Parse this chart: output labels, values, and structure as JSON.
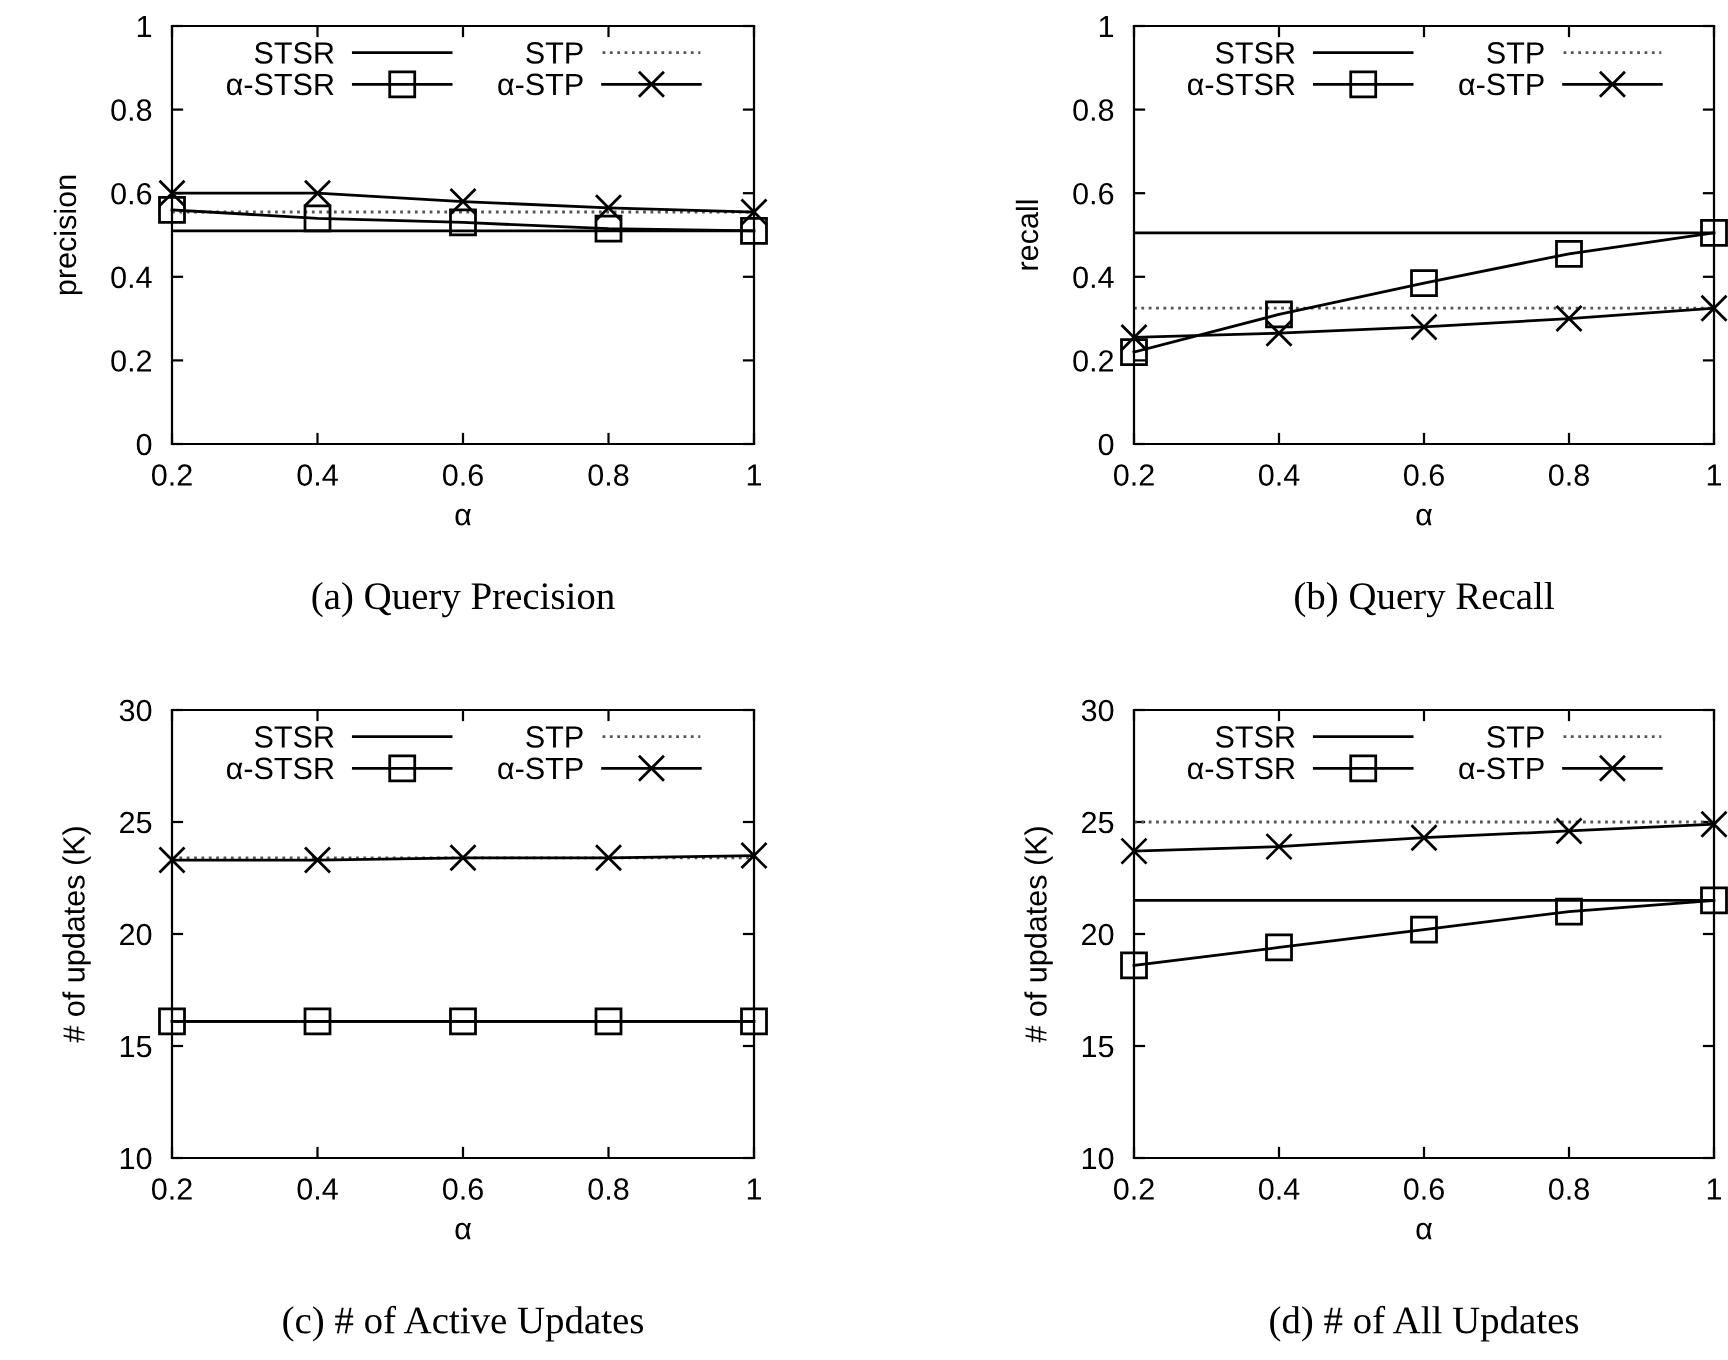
{
  "chart_data": [
    {
      "type": "line",
      "title": "(a) Query Precision",
      "xlabel": "α",
      "ylabel": "precision",
      "x": [
        0.2,
        0.4,
        0.6,
        0.8,
        1
      ],
      "xlim": [
        0.2,
        1
      ],
      "xticks": [
        0.2,
        0.4,
        0.6,
        0.8,
        1
      ],
      "ylim": [
        0,
        1
      ],
      "yticks": [
        0,
        0.2,
        0.4,
        0.6,
        0.8,
        1
      ],
      "grid": false,
      "legend": "top",
      "ref_lines": [
        {
          "axis": "y",
          "value": 0.51,
          "label": "STSR",
          "color": "#000000",
          "line_style": "solid"
        },
        {
          "axis": "y",
          "value": 0.555,
          "label": "STP",
          "color": "#555555",
          "line_style": "dotted"
        }
      ],
      "series": [
        {
          "name": "α-STSR",
          "color": "#000000",
          "line_style": "solid",
          "marker": "square",
          "values": [
            0.56,
            0.54,
            0.53,
            0.515,
            0.51
          ]
        },
        {
          "name": "α-STP",
          "color": "#000000",
          "line_style": "solid",
          "marker": "cross",
          "values": [
            0.6,
            0.6,
            0.58,
            0.565,
            0.555
          ]
        }
      ]
    },
    {
      "type": "line",
      "title": "(b) Query Recall",
      "xlabel": "α",
      "ylabel": "recall",
      "x": [
        0.2,
        0.4,
        0.6,
        0.8,
        1
      ],
      "xlim": [
        0.2,
        1
      ],
      "xticks": [
        0.2,
        0.4,
        0.6,
        0.8,
        1
      ],
      "ylim": [
        0,
        1
      ],
      "yticks": [
        0,
        0.2,
        0.4,
        0.6,
        0.8,
        1
      ],
      "grid": false,
      "legend": "top",
      "ref_lines": [
        {
          "axis": "y",
          "value": 0.505,
          "label": "STSR",
          "color": "#000000",
          "line_style": "solid"
        },
        {
          "axis": "y",
          "value": 0.325,
          "label": "STP",
          "color": "#555555",
          "line_style": "dotted"
        }
      ],
      "series": [
        {
          "name": "α-STSR",
          "color": "#000000",
          "line_style": "solid",
          "marker": "square",
          "values": [
            0.22,
            0.31,
            0.385,
            0.455,
            0.505
          ]
        },
        {
          "name": "α-STP",
          "color": "#000000",
          "line_style": "solid",
          "marker": "cross",
          "values": [
            0.255,
            0.265,
            0.28,
            0.3,
            0.325
          ]
        }
      ]
    },
    {
      "type": "line",
      "title": "(c) # of Active Updates",
      "xlabel": "α",
      "ylabel": "# of updates (K)",
      "x": [
        0.2,
        0.4,
        0.6,
        0.8,
        1
      ],
      "xlim": [
        0.2,
        1
      ],
      "xticks": [
        0.2,
        0.4,
        0.6,
        0.8,
        1
      ],
      "ylim": [
        10,
        30
      ],
      "yticks": [
        10,
        15,
        20,
        25,
        30
      ],
      "grid": false,
      "legend": "top",
      "ref_lines": [
        {
          "axis": "y",
          "value": 16.1,
          "label": "STSR",
          "color": "#000000",
          "line_style": "solid"
        },
        {
          "axis": "y",
          "value": 23.4,
          "label": "STP",
          "color": "#555555",
          "line_style": "dotted"
        }
      ],
      "series": [
        {
          "name": "α-STSR",
          "color": "#000000",
          "line_style": "solid",
          "marker": "square",
          "values": [
            16.1,
            16.1,
            16.1,
            16.1,
            16.1
          ]
        },
        {
          "name": "α-STP",
          "color": "#000000",
          "line_style": "solid",
          "marker": "cross",
          "values": [
            23.3,
            23.3,
            23.4,
            23.4,
            23.5
          ]
        }
      ]
    },
    {
      "type": "line",
      "title": "(d) # of All Updates",
      "xlabel": "α",
      "ylabel": "# of updates (K)",
      "x": [
        0.2,
        0.4,
        0.6,
        0.8,
        1
      ],
      "xlim": [
        0.2,
        1
      ],
      "xticks": [
        0.2,
        0.4,
        0.6,
        0.8,
        1
      ],
      "ylim": [
        10,
        30
      ],
      "yticks": [
        10,
        15,
        20,
        25,
        30
      ],
      "grid": false,
      "legend": "top",
      "ref_lines": [
        {
          "axis": "y",
          "value": 21.5,
          "label": "STSR",
          "color": "#000000",
          "line_style": "solid"
        },
        {
          "axis": "y",
          "value": 25,
          "label": "STP",
          "color": "#555555",
          "line_style": "dotted"
        }
      ],
      "series": [
        {
          "name": "α-STSR",
          "color": "#000000",
          "line_style": "solid",
          "marker": "square",
          "values": [
            18.6,
            19.4,
            20.2,
            21,
            21.5
          ]
        },
        {
          "name": "α-STP",
          "color": "#000000",
          "line_style": "solid",
          "marker": "cross",
          "values": [
            23.7,
            23.9,
            24.3,
            24.6,
            24.9
          ]
        }
      ]
    }
  ]
}
